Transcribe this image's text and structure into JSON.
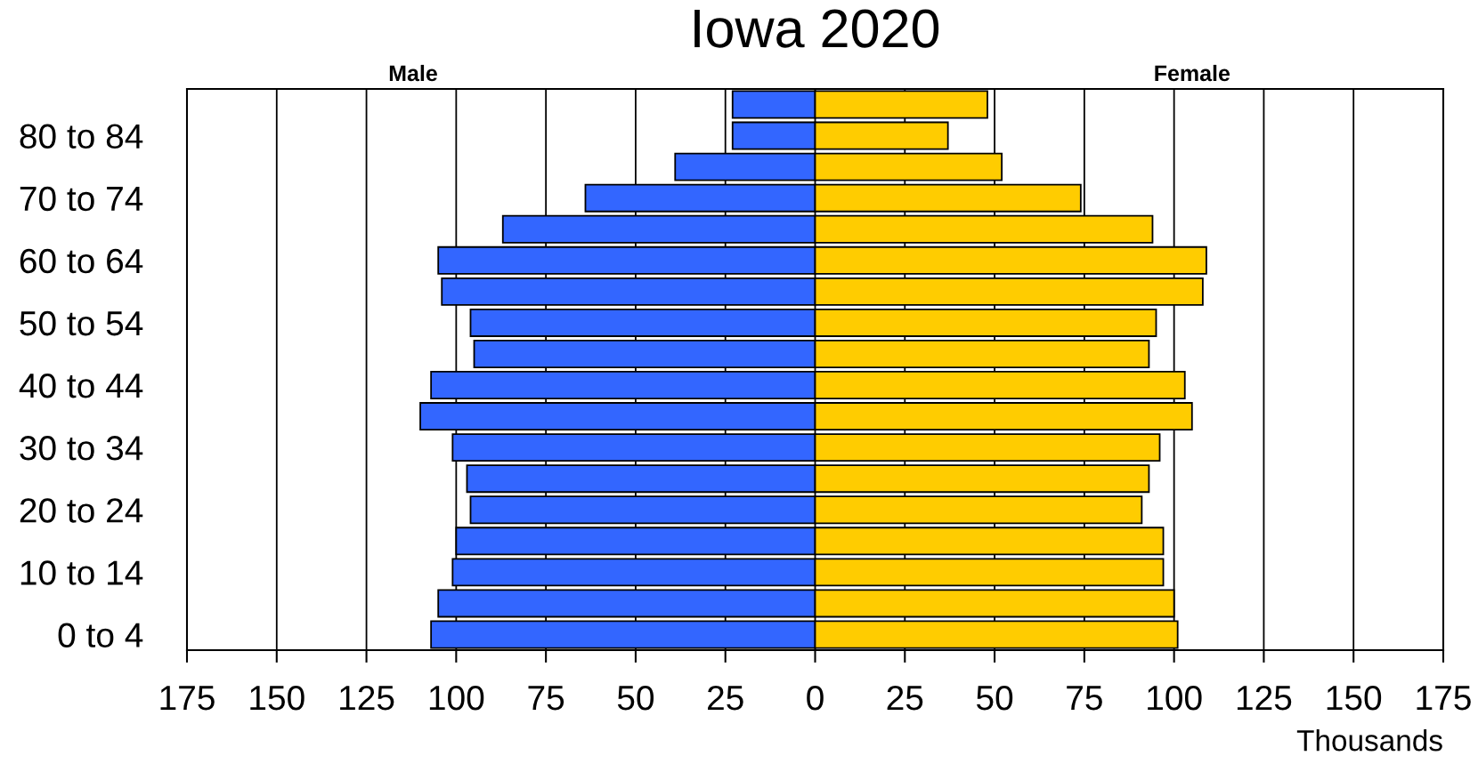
{
  "chart_data": {
    "type": "bar",
    "orientation": "horizontal",
    "stacked": true,
    "title": "Iowa 2020",
    "xlabel": "Thousands",
    "annotations": [
      "Male",
      "Female"
    ],
    "categories": [
      null,
      "80 to 84",
      null,
      "70 to 74",
      null,
      "60 to 64",
      null,
      "50 to 54",
      null,
      "40 to 44",
      null,
      "30 to 34",
      null,
      "20 to 24",
      null,
      "10 to 14",
      null,
      "0 to 4"
    ],
    "series": [
      {
        "color": "#3366ff",
        "values": [
          -23,
          -23,
          -39,
          -64,
          -87,
          -105,
          -104,
          -96,
          -95,
          -107,
          -110,
          -101,
          -97,
          -96,
          -100,
          -101,
          -105,
          -107
        ]
      },
      {
        "color": "#ffcc00",
        "values": [
          48,
          37,
          52,
          74,
          94,
          109,
          108,
          95,
          93,
          103,
          105,
          96,
          93,
          91,
          97,
          97,
          100,
          101
        ]
      }
    ],
    "xlim": [
      -175,
      175
    ],
    "xticks": [
      {
        "value": -175,
        "label": "175"
      },
      {
        "value": -150,
        "label": "150"
      },
      {
        "value": -125,
        "label": "125"
      },
      {
        "value": -100,
        "label": "100"
      },
      {
        "value": -75,
        "label": "75"
      },
      {
        "value": -50,
        "label": "50"
      },
      {
        "value": -25,
        "label": "25"
      },
      0,
      25,
      50,
      75,
      100,
      125,
      150,
      175
    ],
    "grid": "x"
  }
}
